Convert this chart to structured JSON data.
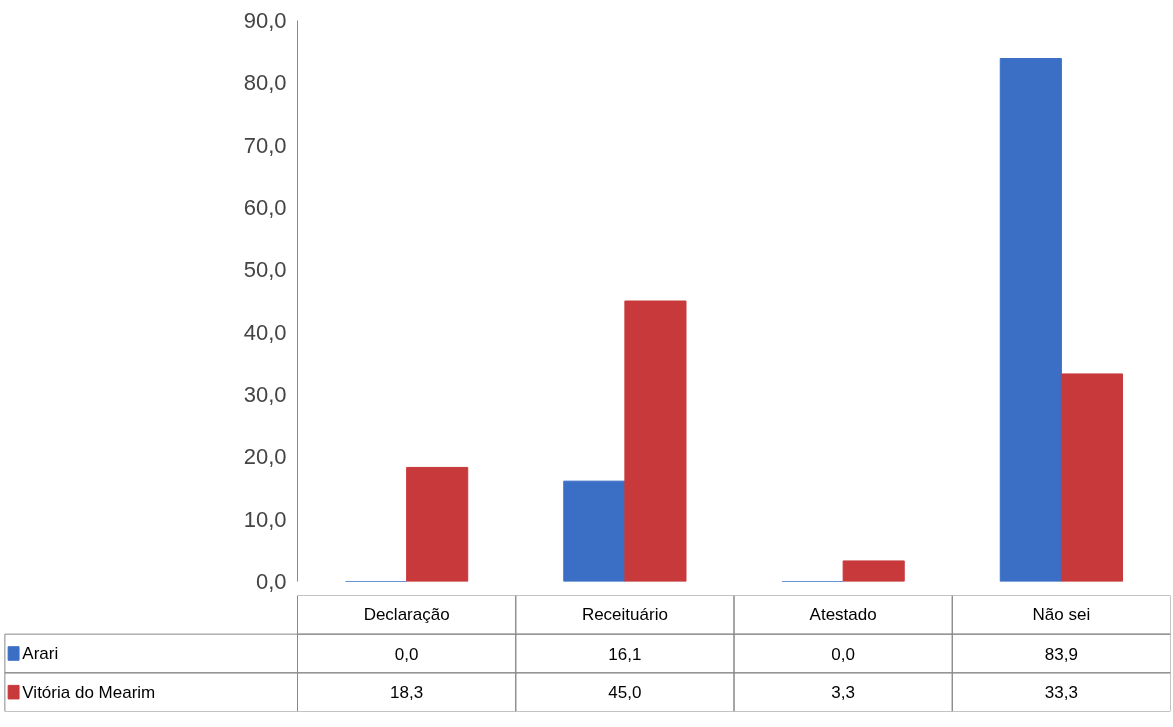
{
  "chart_data": {
    "type": "bar",
    "categories": [
      "Declaração",
      "Receituário",
      "Atestado",
      "Não sei"
    ],
    "series": [
      {
        "name": "Arari",
        "color": "#3b6fc6",
        "values": [
          0.0,
          16.1,
          0.0,
          83.9
        ],
        "value_labels": [
          "0,0",
          "16,1",
          "0,0",
          "83,9"
        ]
      },
      {
        "name": "Vitória do Mearim",
        "color": "#c8393b",
        "values": [
          18.3,
          45.0,
          3.3,
          33.3
        ],
        "value_labels": [
          "18,3",
          "45,0",
          "3,3",
          "33,3"
        ]
      }
    ],
    "ylim": [
      0,
      90
    ],
    "yticks": [
      {
        "value": 0,
        "label": "0,0"
      },
      {
        "value": 10,
        "label": "10,0"
      },
      {
        "value": 20,
        "label": "20,0"
      },
      {
        "value": 30,
        "label": "30,0"
      },
      {
        "value": 40,
        "label": "40,0"
      },
      {
        "value": 50,
        "label": "50,0"
      },
      {
        "value": 60,
        "label": "60,0"
      },
      {
        "value": 70,
        "label": "70,0"
      },
      {
        "value": 80,
        "label": "80,0"
      },
      {
        "value": 90,
        "label": "90,0"
      }
    ],
    "grid": false,
    "legend": "bottom left"
  }
}
